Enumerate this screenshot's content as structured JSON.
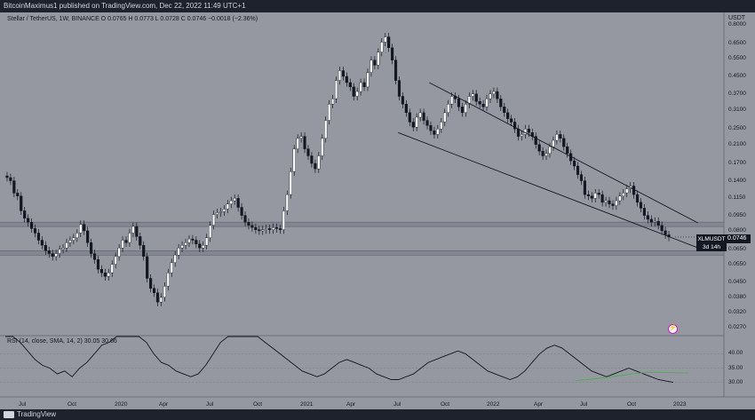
{
  "header": {
    "publisher_line": "BitcoinMaximus1 published on TradingView.com, Dec 22, 2022 11:49 UTC+1"
  },
  "symbol_line": "Stellar / TetherUS, 1W, BINANCE  O 0.0765  H 0.0773  L 0.0728  C 0.0746  −0.0018 (−2.36%)",
  "rsi_line": "RSI (14, close, SMA, 14, 2)  30.05  30.66",
  "price_badge": {
    "symbol": "XLMUSDT",
    "countdown": "3d 14h",
    "price": "0.0746"
  },
  "footer": {
    "brand": "TradingView"
  },
  "colors": {
    "background": "#9598a1",
    "candle_up": "#ffffff",
    "candle_down": "#131722",
    "rsi_line": "#131722",
    "rsi_ma": "#4caf50",
    "accent": "#c020c0"
  },
  "chart_data": [
    {
      "type": "candlestick",
      "title": "Stellar / TetherUS, 1W, BINANCE",
      "y_unit": "USDT",
      "y_scale": "log",
      "ylim": [
        0.025,
        0.85
      ],
      "y_ticks": [
        "0.8000",
        "0.6500",
        "0.5500",
        "0.4500",
        "0.3700",
        "0.3100",
        "0.2500",
        "0.2100",
        "0.1700",
        "0.1400",
        "0.1150",
        "0.0950",
        "0.0800",
        "0.0650",
        "0.0550",
        "0.0450",
        "0.0380",
        "0.0320",
        "0.0270"
      ],
      "x_ticks": [
        "Jul",
        "Oct",
        "2020",
        "Apr",
        "Jul",
        "Oct",
        "2021",
        "Apr",
        "Jul",
        "Oct",
        "2022",
        "Apr",
        "Jul",
        "Oct",
        "2023"
      ],
      "ohlc_last": {
        "open": 0.0765,
        "high": 0.0773,
        "low": 0.0728,
        "close": 0.0746,
        "change": -0.0018,
        "change_pct": -2.36
      },
      "close_series": [
        0.145,
        0.14,
        0.122,
        0.118,
        0.1,
        0.092,
        0.088,
        0.082,
        0.078,
        0.072,
        0.068,
        0.064,
        0.062,
        0.06,
        0.062,
        0.065,
        0.066,
        0.07,
        0.072,
        0.074,
        0.078,
        0.086,
        0.08,
        0.07,
        0.062,
        0.058,
        0.052,
        0.05,
        0.048,
        0.05,
        0.055,
        0.06,
        0.066,
        0.072,
        0.07,
        0.078,
        0.084,
        0.075,
        0.068,
        0.06,
        0.047,
        0.042,
        0.04,
        0.036,
        0.038,
        0.043,
        0.05,
        0.056,
        0.061,
        0.066,
        0.068,
        0.07,
        0.073,
        0.072,
        0.069,
        0.066,
        0.068,
        0.074,
        0.085,
        0.096,
        0.098,
        0.099,
        0.102,
        0.108,
        0.112,
        0.115,
        0.104,
        0.095,
        0.088,
        0.085,
        0.083,
        0.081,
        0.08,
        0.081,
        0.082,
        0.081,
        0.083,
        0.082,
        0.081,
        0.1,
        0.12,
        0.155,
        0.2,
        0.225,
        0.23,
        0.2,
        0.185,
        0.17,
        0.16,
        0.185,
        0.225,
        0.275,
        0.33,
        0.35,
        0.43,
        0.48,
        0.45,
        0.42,
        0.4,
        0.36,
        0.38,
        0.42,
        0.4,
        0.47,
        0.54,
        0.51,
        0.59,
        0.66,
        0.7,
        0.62,
        0.54,
        0.43,
        0.36,
        0.33,
        0.3,
        0.27,
        0.255,
        0.285,
        0.3,
        0.275,
        0.26,
        0.245,
        0.235,
        0.25,
        0.27,
        0.3,
        0.33,
        0.36,
        0.35,
        0.32,
        0.3,
        0.33,
        0.36,
        0.37,
        0.34,
        0.33,
        0.32,
        0.35,
        0.37,
        0.38,
        0.35,
        0.32,
        0.3,
        0.28,
        0.27,
        0.25,
        0.23,
        0.235,
        0.25,
        0.24,
        0.23,
        0.21,
        0.195,
        0.185,
        0.19,
        0.205,
        0.22,
        0.235,
        0.225,
        0.205,
        0.19,
        0.175,
        0.165,
        0.15,
        0.14,
        0.12,
        0.118,
        0.115,
        0.122,
        0.12,
        0.11,
        0.112,
        0.108,
        0.106,
        0.112,
        0.118,
        0.122,
        0.128,
        0.132,
        0.12,
        0.11,
        0.103,
        0.095,
        0.091,
        0.088,
        0.089,
        0.085,
        0.08,
        0.0765,
        0.0746
      ],
      "support_lines": [
        0.086,
        0.0625
      ],
      "wedge": {
        "upper": [
          {
            "date": "2021-09",
            "price": 0.42
          },
          {
            "date": "2022-12-31",
            "price": 0.084
          }
        ],
        "lower": [
          {
            "date": "2021-07",
            "price": 0.24
          },
          {
            "date": "2022-12-31",
            "price": 0.0702
          }
        ]
      }
    },
    {
      "type": "line",
      "title": "RSI (14, close, SMA, 14, 2)",
      "values_printed": [
        30.05,
        30.66
      ],
      "ylim": [
        29,
        46
      ],
      "y_ticks": [
        "40.00",
        "35.00",
        "30.00"
      ],
      "rsi_series": [
        48,
        46,
        44,
        41,
        38,
        36,
        35,
        33,
        34,
        32,
        35,
        37,
        40,
        43,
        44,
        46,
        47,
        48,
        46,
        44,
        40,
        37,
        36,
        34,
        33,
        32,
        33,
        36,
        40,
        44,
        48,
        50,
        52,
        50,
        47,
        44,
        42,
        40,
        38,
        36,
        34,
        33,
        32,
        33,
        35,
        37,
        38,
        37,
        36,
        35,
        33,
        32,
        31,
        31,
        32,
        33,
        35,
        37,
        38,
        39,
        40,
        41,
        40,
        38,
        36,
        34,
        33,
        32,
        31,
        32,
        34,
        37,
        40,
        42,
        43,
        42,
        40,
        38,
        36,
        34,
        33,
        32,
        33,
        34,
        35,
        34,
        33,
        32,
        31,
        30.5,
        30.05
      ],
      "ma_series": [
        30.66,
        31.0,
        31.4,
        31.9,
        32.4,
        33.0,
        33.4,
        33.6,
        33.5,
        33.4,
        33.3
      ]
    }
  ]
}
